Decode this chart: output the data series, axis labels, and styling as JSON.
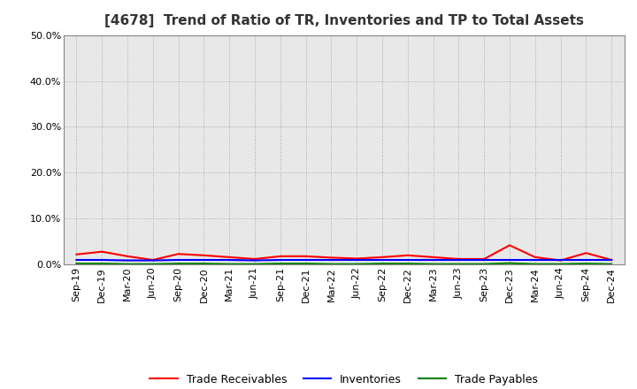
{
  "title": "[4678]  Trend of Ratio of TR, Inventories and TP to Total Assets",
  "x_labels": [
    "Sep-19",
    "Dec-19",
    "Mar-20",
    "Jun-20",
    "Sep-20",
    "Dec-20",
    "Mar-21",
    "Jun-21",
    "Sep-21",
    "Dec-21",
    "Mar-22",
    "Jun-22",
    "Sep-22",
    "Dec-22",
    "Mar-23",
    "Jun-23",
    "Sep-23",
    "Dec-23",
    "Mar-24",
    "Jun-24",
    "Sep-24",
    "Dec-24"
  ],
  "trade_receivables": [
    0.022,
    0.028,
    0.018,
    0.01,
    0.023,
    0.02,
    0.016,
    0.012,
    0.018,
    0.018,
    0.015,
    0.013,
    0.016,
    0.02,
    0.016,
    0.012,
    0.012,
    0.042,
    0.016,
    0.009,
    0.025,
    0.01
  ],
  "inventories": [
    0.01,
    0.01,
    0.009,
    0.009,
    0.01,
    0.01,
    0.01,
    0.009,
    0.01,
    0.01,
    0.01,
    0.01,
    0.01,
    0.01,
    0.01,
    0.01,
    0.01,
    0.01,
    0.01,
    0.01,
    0.01,
    0.01
  ],
  "trade_payables": [
    0.002,
    0.002,
    0.001,
    0.001,
    0.002,
    0.002,
    0.001,
    0.001,
    0.002,
    0.002,
    0.001,
    0.001,
    0.002,
    0.002,
    0.001,
    0.001,
    0.001,
    0.003,
    0.001,
    0.001,
    0.002,
    0.001
  ],
  "tr_color": "#FF0000",
  "inv_color": "#0000FF",
  "tp_color": "#008000",
  "ylim": [
    0.0,
    0.5
  ],
  "yticks": [
    0.0,
    0.1,
    0.2,
    0.3,
    0.4,
    0.5
  ],
  "background_color": "#FFFFFF",
  "plot_bg_color": "#E8E8E8",
  "grid_color": "#999999",
  "title_fontsize": 11,
  "legend_fontsize": 9,
  "tick_fontsize": 8
}
